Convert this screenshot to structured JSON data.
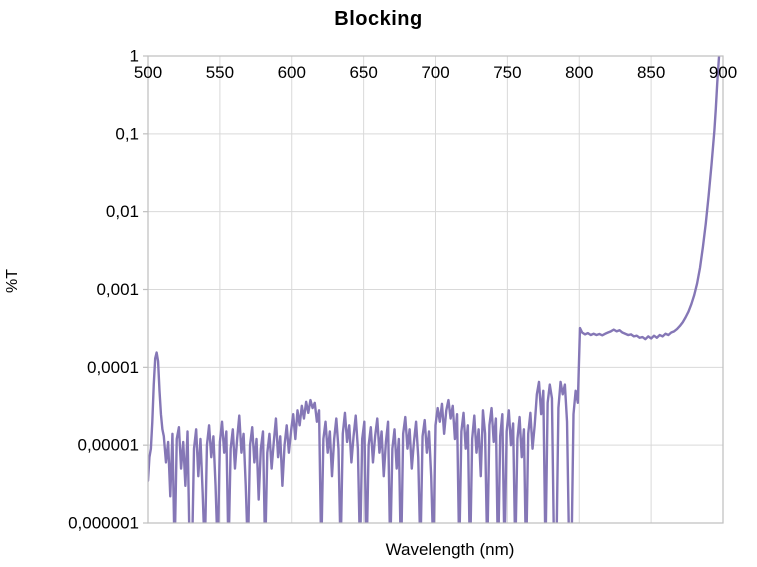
{
  "chart_data": {
    "type": "line",
    "title": "Blocking",
    "xlabel": "Wavelength (nm)",
    "ylabel": "%T",
    "x_axis_position": "top",
    "y_scale": "log",
    "xlim": [
      500,
      900
    ],
    "ylim": [
      1e-06,
      1
    ],
    "grid": true,
    "x_ticks": [
      500,
      550,
      600,
      650,
      700,
      750,
      800,
      850,
      900
    ],
    "y_ticks": [
      {
        "value": 1,
        "label": "1"
      },
      {
        "value": 0.1,
        "label": "0,1"
      },
      {
        "value": 0.01,
        "label": "0,01"
      },
      {
        "value": 0.001,
        "label": "0,001"
      },
      {
        "value": 0.0001,
        "label": "0,0001"
      },
      {
        "value": 1e-05,
        "label": "0,00001"
      },
      {
        "value": 1e-06,
        "label": "0,000001"
      }
    ],
    "colors": {
      "line": "#8577b6",
      "grid": "#d9d9d9",
      "axis": "#bfbfbf",
      "text": "#000000",
      "background": "#ffffff"
    },
    "series": [
      {
        "name": "%T",
        "points": [
          [
            500,
            3.5e-06
          ],
          [
            501,
            7e-06
          ],
          [
            502,
            9e-06
          ],
          [
            503,
            2e-05
          ],
          [
            504,
            6e-05
          ],
          [
            505,
            0.00013
          ],
          [
            506,
            0.000155
          ],
          [
            507,
            0.00012
          ],
          [
            508,
            5e-05
          ],
          [
            509,
            2.5e-05
          ],
          [
            510,
            1.6e-05
          ],
          [
            511,
            1.3e-05
          ],
          [
            512.5,
            6e-06
          ],
          [
            514,
            1.1e-05
          ],
          [
            515.5,
            2.2e-06
          ],
          [
            517,
            1.4e-05
          ],
          [
            518.5,
            4e-07
          ],
          [
            520,
            1.2e-05
          ],
          [
            521.5,
            1.7e-05
          ],
          [
            523,
            5e-06
          ],
          [
            524.5,
            1.1e-05
          ],
          [
            526,
            3e-06
          ],
          [
            527.5,
            1.5e-05
          ],
          [
            529,
            4e-07
          ],
          [
            530.5,
            3e-07
          ],
          [
            532,
            9e-06
          ],
          [
            533.5,
            1.6e-05
          ],
          [
            535,
            4e-06
          ],
          [
            536.5,
            1.2e-05
          ],
          [
            538,
            2.5e-06
          ],
          [
            539.5,
            4e-07
          ],
          [
            541,
            1e-05
          ],
          [
            542.5,
            1.8e-05
          ],
          [
            544,
            7e-06
          ],
          [
            545.5,
            1.3e-05
          ],
          [
            547,
            3e-06
          ],
          [
            548.5,
            4e-07
          ],
          [
            550,
            1.1e-05
          ],
          [
            551.5,
            2e-05
          ],
          [
            553,
            8e-06
          ],
          [
            554.5,
            1.5e-05
          ],
          [
            556,
            4e-07
          ],
          [
            557.5,
            9e-06
          ],
          [
            559,
            1.6e-05
          ],
          [
            560.5,
            5e-06
          ],
          [
            562,
            1.2e-05
          ],
          [
            563.5,
            2.4e-05
          ],
          [
            565,
            8e-06
          ],
          [
            566.5,
            1.4e-05
          ],
          [
            568,
            3e-06
          ],
          [
            569.5,
            4e-07
          ],
          [
            571,
            1e-05
          ],
          [
            572.5,
            1.7e-05
          ],
          [
            574,
            6e-06
          ],
          [
            575.5,
            1.2e-05
          ],
          [
            577,
            2e-06
          ],
          [
            578.5,
            9e-06
          ],
          [
            580,
            1.5e-05
          ],
          [
            581.5,
            4e-07
          ],
          [
            583,
            8e-06
          ],
          [
            584.5,
            1.4e-05
          ],
          [
            586,
            5e-06
          ],
          [
            587.5,
            1.1e-05
          ],
          [
            589,
            2.2e-05
          ],
          [
            590.5,
            7e-06
          ],
          [
            592,
            1.3e-05
          ],
          [
            593.5,
            3e-06
          ],
          [
            595,
            1e-05
          ],
          [
            596.5,
            1.8e-05
          ],
          [
            598,
            8e-06
          ],
          [
            599.5,
            1.5e-05
          ],
          [
            601,
            2.5e-05
          ],
          [
            602.5,
            1.2e-05
          ],
          [
            604,
            2.8e-05
          ],
          [
            605.5,
            1.8e-05
          ],
          [
            607,
            3.2e-05
          ],
          [
            608.5,
            2.2e-05
          ],
          [
            610,
            3.6e-05
          ],
          [
            611.5,
            2.6e-05
          ],
          [
            613,
            3.8e-05
          ],
          [
            614.5,
            3e-05
          ],
          [
            616,
            3.5e-05
          ],
          [
            617.5,
            2e-05
          ],
          [
            619,
            2.8e-05
          ],
          [
            620.5,
            4e-07
          ],
          [
            622,
            1.2e-05
          ],
          [
            623.5,
            2e-05
          ],
          [
            625,
            8e-06
          ],
          [
            626.5,
            1.5e-05
          ],
          [
            628,
            4e-06
          ],
          [
            629.5,
            1.2e-05
          ],
          [
            631,
            2.2e-05
          ],
          [
            632.5,
            9e-06
          ],
          [
            634,
            4e-07
          ],
          [
            635.5,
            1.4e-05
          ],
          [
            637,
            2.6e-05
          ],
          [
            638.5,
            1.1e-05
          ],
          [
            640,
            1.8e-05
          ],
          [
            641.5,
            6e-06
          ],
          [
            643,
            1.3e-05
          ],
          [
            644.5,
            2.4e-05
          ],
          [
            646,
            9e-06
          ],
          [
            647.5,
            4e-07
          ],
          [
            649,
            1.2e-05
          ],
          [
            650.5,
            2e-05
          ],
          [
            652,
            3e-07
          ],
          [
            653.5,
            1e-05
          ],
          [
            655,
            1.7e-05
          ],
          [
            656.5,
            6e-06
          ],
          [
            658,
            1.3e-05
          ],
          [
            659.5,
            2.2e-05
          ],
          [
            661,
            8e-06
          ],
          [
            662.5,
            1.5e-05
          ],
          [
            664,
            4e-06
          ],
          [
            665.5,
            1.1e-05
          ],
          [
            667,
            2e-05
          ],
          [
            668.5,
            4e-07
          ],
          [
            670,
            9e-06
          ],
          [
            671.5,
            1.6e-05
          ],
          [
            673,
            5e-06
          ],
          [
            674.5,
            1.2e-05
          ],
          [
            676,
            3e-07
          ],
          [
            677.5,
            1.4e-05
          ],
          [
            679,
            2.3e-05
          ],
          [
            680.5,
            9e-06
          ],
          [
            682,
            1.6e-05
          ],
          [
            683.5,
            5e-06
          ],
          [
            685,
            1.1e-05
          ],
          [
            686.5,
            2e-05
          ],
          [
            688,
            7e-06
          ],
          [
            689.5,
            4e-07
          ],
          [
            691,
            1.3e-05
          ],
          [
            692.5,
            2.1e-05
          ],
          [
            694,
            8e-06
          ],
          [
            695.5,
            1.5e-05
          ],
          [
            697,
            4e-06
          ],
          [
            698.5,
            4e-07
          ],
          [
            700,
            1.8e-05
          ],
          [
            701.5,
            3e-05
          ],
          [
            703,
            2e-05
          ],
          [
            704.5,
            3.4e-05
          ],
          [
            706,
            1.4e-05
          ],
          [
            707.5,
            2.8e-05
          ],
          [
            709,
            3.8e-05
          ],
          [
            710.5,
            2.2e-05
          ],
          [
            712,
            3.2e-05
          ],
          [
            713.5,
            1.2e-05
          ],
          [
            715,
            2.5e-05
          ],
          [
            716.5,
            4e-07
          ],
          [
            718,
            1.5e-05
          ],
          [
            719.5,
            2.6e-05
          ],
          [
            721,
            9e-06
          ],
          [
            722.5,
            1.8e-05
          ],
          [
            724,
            3e-07
          ],
          [
            725.5,
            1.2e-05
          ],
          [
            727,
            2.4e-05
          ],
          [
            728.5,
            8e-06
          ],
          [
            730,
            1.6e-05
          ],
          [
            731.5,
            4e-06
          ],
          [
            733,
            2.8e-05
          ],
          [
            734.5,
            1.4e-05
          ],
          [
            736,
            4e-07
          ],
          [
            737.5,
            1.8e-05
          ],
          [
            739,
            3e-05
          ],
          [
            740.5,
            1.1e-05
          ],
          [
            742,
            2.2e-05
          ],
          [
            743.5,
            3e-07
          ],
          [
            745,
            1.3e-05
          ],
          [
            746.5,
            2.5e-05
          ],
          [
            748,
            4e-07
          ],
          [
            749.5,
            1.5e-05
          ],
          [
            751,
            2.8e-05
          ],
          [
            752.5,
            1e-05
          ],
          [
            754,
            1.9e-05
          ],
          [
            755.5,
            4e-07
          ],
          [
            757,
            1.2e-05
          ],
          [
            758.5,
            2.3e-05
          ],
          [
            760,
            7e-06
          ],
          [
            761.5,
            1.6e-05
          ],
          [
            763,
            3e-07
          ],
          [
            764.5,
            1.4e-05
          ],
          [
            766,
            2.6e-05
          ],
          [
            767.5,
            9e-06
          ],
          [
            769,
            1.8e-05
          ],
          [
            770.5,
            4.5e-05
          ],
          [
            772,
            6.5e-05
          ],
          [
            773.5,
            2.5e-05
          ],
          [
            775,
            5e-05
          ],
          [
            776.5,
            4e-07
          ],
          [
            778,
            3.5e-05
          ],
          [
            779.5,
            6e-05
          ],
          [
            781,
            4e-05
          ],
          [
            782.5,
            4e-07
          ],
          [
            784,
            3e-07
          ],
          [
            785.5,
            3e-05
          ],
          [
            787,
            6.5e-05
          ],
          [
            788.5,
            4.5e-05
          ],
          [
            790,
            6e-05
          ],
          [
            791.5,
            2e-05
          ],
          [
            793,
            4e-07
          ],
          [
            794.5,
            3e-07
          ],
          [
            796,
            2.5e-05
          ],
          [
            797.5,
            5e-05
          ],
          [
            799,
            3.5e-05
          ],
          [
            800.5,
            0.00032
          ],
          [
            802,
            0.00028
          ],
          [
            804,
            0.000265
          ],
          [
            806,
            0.000275
          ],
          [
            808,
            0.00026
          ],
          [
            810,
            0.00027
          ],
          [
            812,
            0.00026
          ],
          [
            814,
            0.000268
          ],
          [
            816,
            0.000258
          ],
          [
            818,
            0.00027
          ],
          [
            820,
            0.00028
          ],
          [
            822,
            0.00029
          ],
          [
            824,
            0.000305
          ],
          [
            826,
            0.00029
          ],
          [
            828,
            0.0003
          ],
          [
            830,
            0.00028
          ],
          [
            832,
            0.00027
          ],
          [
            834,
            0.00026
          ],
          [
            836,
            0.000265
          ],
          [
            838,
            0.00025
          ],
          [
            840,
            0.000255
          ],
          [
            842,
            0.00024
          ],
          [
            844,
            0.000245
          ],
          [
            846,
            0.00023
          ],
          [
            848,
            0.00025
          ],
          [
            850,
            0.000235
          ],
          [
            852,
            0.000255
          ],
          [
            854,
            0.00024
          ],
          [
            856,
            0.00026
          ],
          [
            858,
            0.00025
          ],
          [
            860,
            0.00027
          ],
          [
            862,
            0.00026
          ],
          [
            864,
            0.00028
          ],
          [
            866,
            0.00029
          ],
          [
            868,
            0.00031
          ],
          [
            870,
            0.00034
          ],
          [
            872,
            0.00038
          ],
          [
            874,
            0.00044
          ],
          [
            876,
            0.00052
          ],
          [
            878,
            0.00065
          ],
          [
            880,
            0.00085
          ],
          [
            882,
            0.0012
          ],
          [
            884,
            0.0019
          ],
          [
            886,
            0.0035
          ],
          [
            888,
            0.007
          ],
          [
            890,
            0.016
          ],
          [
            892,
            0.04
          ],
          [
            894,
            0.11
          ],
          [
            895,
            0.21
          ],
          [
            896,
            0.45
          ],
          [
            897,
            0.85
          ],
          [
            898,
            1.6
          ]
        ]
      }
    ]
  }
}
